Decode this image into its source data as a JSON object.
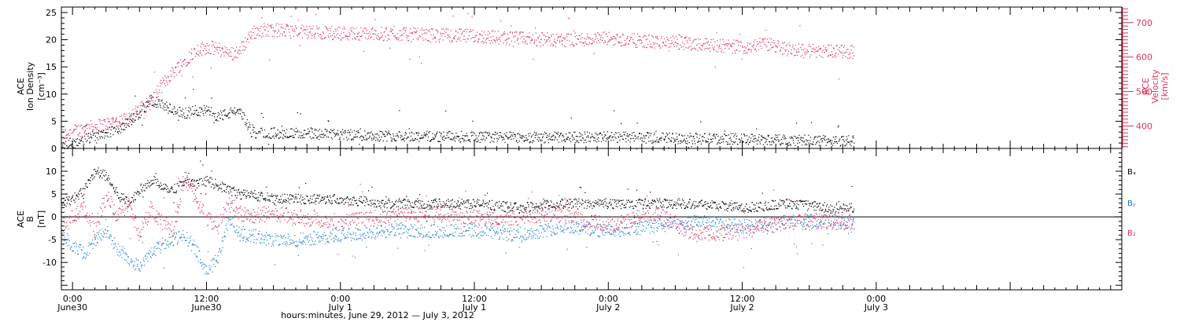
{
  "colors": {
    "density": "#000000",
    "velocity": "#e0305a",
    "bx": "#000000",
    "by": "#1e7fd8",
    "bz": "#e0305a"
  },
  "footer": {
    "xlabel": "hours:minutes, June 29, 2012 — July  3, 2012"
  },
  "chart_data": [
    {
      "type": "scatter",
      "panel": "top",
      "left_axis": {
        "label_lines": [
          "ACE",
          "Ion Density",
          "[cm⁻³]"
        ],
        "range": [
          0,
          26
        ],
        "ticks": [
          0,
          5,
          10,
          15,
          20,
          25
        ]
      },
      "right_axis": {
        "label_lines": [
          "ACE",
          "Velocity",
          "[km/s]"
        ],
        "range": [
          335,
          745
        ],
        "ticks": [
          400,
          500,
          600,
          700
        ]
      },
      "x_range_hours": [
        -1,
        94
      ],
      "x_ticks": [
        {
          "h": 0,
          "label1": "0:00",
          "label2": "June30"
        },
        {
          "h": 12,
          "label1": "12:00",
          "label2": "June30"
        },
        {
          "h": 24,
          "label1": "0:00",
          "label2": "July 1"
        },
        {
          "h": 36,
          "label1": "12:00",
          "label2": "July 1"
        },
        {
          "h": 48,
          "label1": "0:00",
          "label2": "July 2"
        },
        {
          "h": 60,
          "label1": "12:00",
          "label2": "July 2"
        },
        {
          "h": 72,
          "label1": "0:00",
          "label2": "July 3"
        }
      ],
      "series": [
        {
          "key": "density",
          "axis": "left",
          "x": [
            -1,
            0,
            1,
            2,
            3,
            4,
            5,
            6,
            7,
            8,
            9,
            10,
            11,
            12,
            13,
            14,
            15,
            16,
            18,
            20,
            24,
            28,
            32,
            36,
            40,
            44,
            48,
            52,
            56,
            60,
            64,
            68,
            70
          ],
          "y": [
            1.0,
            1.0,
            1.5,
            2.5,
            3,
            3.5,
            5,
            6.5,
            9,
            8,
            7,
            6.5,
            7,
            7,
            6,
            6.5,
            7,
            3,
            2.9,
            2.8,
            2.6,
            2.4,
            2.3,
            2.2,
            2.1,
            2.1,
            2.2,
            2.0,
            1.9,
            1.8,
            1.6,
            1.5,
            1.5
          ]
        },
        {
          "key": "velocity",
          "axis": "right",
          "x": [
            -1,
            0,
            2,
            4,
            5,
            6,
            7,
            8,
            9,
            10,
            11,
            12,
            13,
            14,
            15,
            16,
            17,
            18,
            20,
            24,
            28,
            32,
            36,
            40,
            44,
            48,
            52,
            56,
            60,
            62,
            64,
            66,
            68,
            70
          ],
          "y": [
            375,
            385,
            400,
            415,
            425,
            450,
            470,
            520,
            560,
            590,
            620,
            630,
            625,
            610,
            620,
            670,
            680,
            680,
            675,
            670,
            668,
            665,
            662,
            655,
            650,
            655,
            645,
            640,
            630,
            640,
            625,
            620,
            620,
            615
          ]
        }
      ]
    },
    {
      "type": "scatter",
      "panel": "bottom",
      "left_axis": {
        "label_lines": [
          "ACE",
          "B",
          "[nT]"
        ],
        "range": [
          -16,
          15
        ],
        "ticks": [
          -10,
          -5,
          0,
          5,
          10
        ]
      },
      "zero_line": true,
      "legend": [
        "Bₓ",
        "Bᵧ",
        "B₂"
      ],
      "legend_position": "right",
      "series": [
        {
          "key": "bx",
          "name": "Bₓ",
          "x": [
            -1,
            0,
            1,
            2,
            3,
            4,
            5,
            6,
            7,
            8,
            9,
            10,
            11,
            12,
            13,
            14,
            15,
            16,
            18,
            20,
            24,
            28,
            32,
            36,
            40,
            44,
            48,
            52,
            56,
            60,
            64,
            68,
            70
          ],
          "y": [
            3,
            4,
            6,
            10,
            9,
            5,
            3,
            6,
            8,
            7,
            6,
            8,
            7,
            8,
            7,
            6,
            5,
            5,
            4,
            4,
            4,
            3,
            3,
            3,
            2,
            3,
            3,
            3,
            3,
            2,
            3,
            2,
            2
          ]
        },
        {
          "key": "by",
          "name": "Bᵧ",
          "x": [
            -1,
            0,
            1,
            2,
            3,
            4,
            5,
            6,
            7,
            8,
            9,
            10,
            11,
            12,
            13,
            14,
            15,
            16,
            18,
            20,
            24,
            28,
            32,
            36,
            40,
            44,
            48,
            52,
            56,
            60,
            64,
            68,
            70
          ],
          "y": [
            -4,
            -6,
            -8,
            -5,
            -3,
            -7,
            -9,
            -11,
            -8,
            -6,
            -5,
            -4,
            -7,
            -12,
            -9,
            0,
            -4,
            -4,
            -5,
            -5,
            -4,
            -3,
            -3,
            -3,
            -4,
            -2,
            -3,
            -2,
            -1,
            -2,
            -1,
            -1,
            -1
          ]
        },
        {
          "key": "bz",
          "name": "B₂",
          "x": [
            -1,
            0,
            1,
            2,
            3,
            4,
            5,
            6,
            7,
            8,
            9,
            10,
            11,
            12,
            13,
            14,
            15,
            16,
            18,
            20,
            24,
            28,
            32,
            36,
            40,
            44,
            48,
            52,
            56,
            60,
            64,
            68,
            70
          ],
          "y": [
            -2,
            0,
            2,
            -3,
            5,
            0,
            3,
            -4,
            2,
            -1,
            -3,
            9,
            4,
            0,
            -2,
            3,
            1,
            0,
            1,
            0,
            -1,
            0,
            1,
            0,
            0,
            1,
            -2,
            1,
            -4,
            -3,
            -1,
            -1,
            -1
          ]
        }
      ]
    }
  ]
}
